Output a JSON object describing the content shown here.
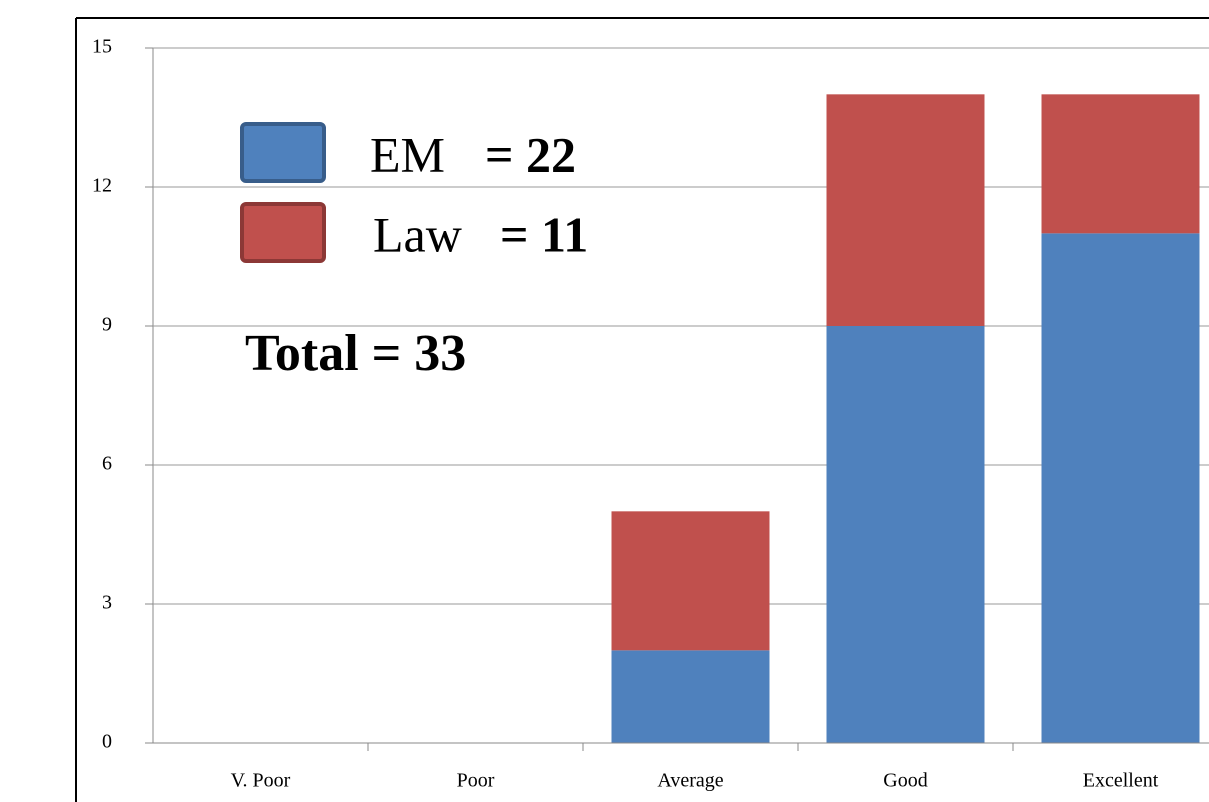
{
  "chart_data": {
    "type": "stacked_bar",
    "categories": [
      "V. Poor",
      "Poor",
      "Average",
      "Good",
      "Excellent"
    ],
    "series": [
      {
        "name": "EM",
        "color": "#4f81bd",
        "values": [
          0,
          0,
          2,
          9,
          11
        ]
      },
      {
        "name": "Law",
        "color": "#c0504d",
        "values": [
          0,
          0,
          3,
          5,
          3
        ]
      }
    ],
    "legend_annotations": [
      "= 22",
      "= 11"
    ],
    "annotation": "Total = 33",
    "ylim": [
      0,
      15
    ],
    "yticks": [
      0,
      3,
      6,
      9,
      12,
      15
    ],
    "grid": true
  }
}
